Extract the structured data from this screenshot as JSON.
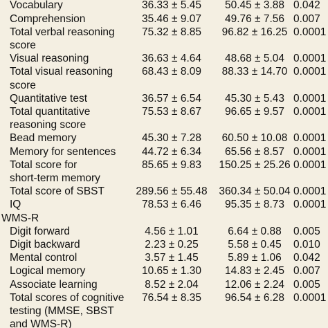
{
  "table": {
    "rows": [
      {
        "label": [
          "Vocabulary"
        ],
        "group1": "36.33 ± 5.45",
        "group2": "50.45 ± 3.88",
        "p": "0.042"
      },
      {
        "label": [
          "Comprehension"
        ],
        "group1": "35.46 ± 9.07",
        "group2": "49.76 ± 7.56",
        "p": "0.007"
      },
      {
        "label": [
          "Total verbal reasoning",
          "score"
        ],
        "group1": "75.32 ± 8.85",
        "group2": "96.82 ± 16.25",
        "p": "0.0001"
      },
      {
        "label": [
          "Visual reasoning"
        ],
        "group1": "36.63 ± 4.64",
        "group2": "48.68 ± 5.04",
        "p": "0.0001"
      },
      {
        "label": [
          "Total visual reasoning",
          "score"
        ],
        "group1": "68.43 ± 8.09",
        "group2": "88.33 ± 14.70",
        "p": "0.0001"
      },
      {
        "label": [
          "Quantitative test"
        ],
        "group1": "36.57 ± 6.54",
        "group2": "45.30 ± 5.43",
        "p": "0.0001"
      },
      {
        "label": [
          "Total quantitative",
          "reasoning score"
        ],
        "group1": "75.53 ± 8.67",
        "group2": "96.65 ± 9.57",
        "p": "0.0001"
      },
      {
        "label": [
          "Bead memory"
        ],
        "group1": "45.30 ± 7.28",
        "group2": "60.50 ± 10.08",
        "p": "0.0001"
      },
      {
        "label": [
          "Memory for sentences"
        ],
        "group1": "44.72 ± 6.34",
        "group2": "65.56 ± 8.57",
        "p": "0.0001"
      },
      {
        "label": [
          "Total score for",
          "short-term memory"
        ],
        "group1": "85.65 ± 9.83",
        "group2": "150.25 ± 25.26",
        "p": "0.0001"
      },
      {
        "label": [
          "Total score of SBST"
        ],
        "group1": "289.56 ± 55.48",
        "group2": "360.34 ± 50.04",
        "p": "0.0001"
      },
      {
        "label": [
          "IQ"
        ],
        "group1": "78.53 ± 6.46",
        "group2": "95.35 ± 8.73",
        "p": "0.0001"
      },
      {
        "section": "WMS-R"
      },
      {
        "label": [
          "Digit forward"
        ],
        "group1": "4.56 ± 1.01",
        "group2": "6.64 ± 0.88",
        "p": "0.005"
      },
      {
        "label": [
          "Digit backward"
        ],
        "group1": "2.23 ± 0.25",
        "group2": "5.58 ± 0.45",
        "p": "0.010"
      },
      {
        "label": [
          "Mental control"
        ],
        "group1": "3.57 ± 1.45",
        "group2": "5.89 ± 1.06",
        "p": "0.042"
      },
      {
        "label": [
          "Logical memory"
        ],
        "group1": "10.65 ± 1.30",
        "group2": "14.83 ± 2.45",
        "p": "0.007"
      },
      {
        "label": [
          "Associate learning"
        ],
        "group1": "8.52 ± 2.04",
        "group2": "12.06 ± 2.24",
        "p": "0.005"
      },
      {
        "label": [
          "Total scores of cognitive",
          "testing (MMSE, SBST",
          "and WMS-R)"
        ],
        "group1": "76.54 ± 8.35",
        "group2": "96.54 ± 6.28",
        "p": "0.0001"
      }
    ]
  }
}
